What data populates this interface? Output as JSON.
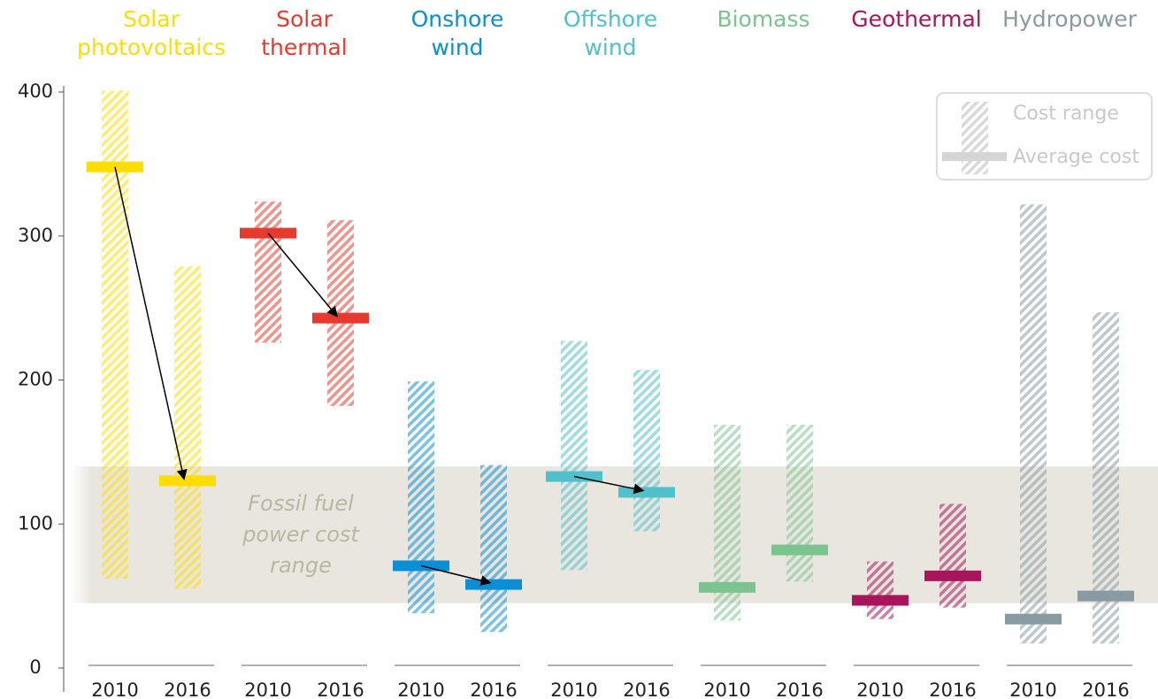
{
  "chart_data": {
    "type": "range_bar",
    "categories": [
      "2010",
      "2016"
    ],
    "ylim": [
      0,
      400
    ],
    "yticks": [
      0,
      100,
      200,
      300,
      400
    ],
    "band": {
      "low": 45,
      "high": 140,
      "label": "Fossil fuel\npower cost\nrange",
      "color": "#e8e6df"
    },
    "legend": {
      "position": "top-right",
      "range_label": "Cost range",
      "average_label": "Average cost"
    },
    "series": [
      {
        "name": "Solar\nphotovoltaics",
        "color": "#ffdd00",
        "low": [
          62,
          55
        ],
        "high": [
          401,
          279
        ],
        "values": [
          348,
          130
        ],
        "arrow": true
      },
      {
        "name": "Solar\nthermal",
        "color": "#e63a2e",
        "low": [
          226,
          182
        ],
        "high": [
          324,
          311
        ],
        "values": [
          302,
          243
        ],
        "arrow": true
      },
      {
        "name": "Onshore\nwind",
        "color": "#0a8fd6",
        "low": [
          38,
          25
        ],
        "high": [
          199,
          141
        ],
        "values": [
          71,
          58
        ],
        "arrow": true
      },
      {
        "name": "Offshore\nwind",
        "color": "#4fc0cc",
        "low": [
          68,
          95
        ],
        "high": [
          227,
          207
        ],
        "values": [
          133,
          122
        ],
        "arrow": true
      },
      {
        "name": "Biomass",
        "color": "#7cc48f",
        "low": [
          33,
          60
        ],
        "high": [
          169,
          169
        ],
        "values": [
          56,
          82
        ],
        "arrow": false
      },
      {
        "name": "Geothermal",
        "color": "#a8155a",
        "low": [
          34,
          42
        ],
        "high": [
          74,
          114
        ],
        "values": [
          47,
          64
        ],
        "arrow": false
      },
      {
        "name": "Hydropower",
        "color": "#8a9aa3",
        "low": [
          17,
          17
        ],
        "high": [
          322,
          247
        ],
        "values": [
          34,
          50
        ],
        "arrow": false
      }
    ]
  }
}
